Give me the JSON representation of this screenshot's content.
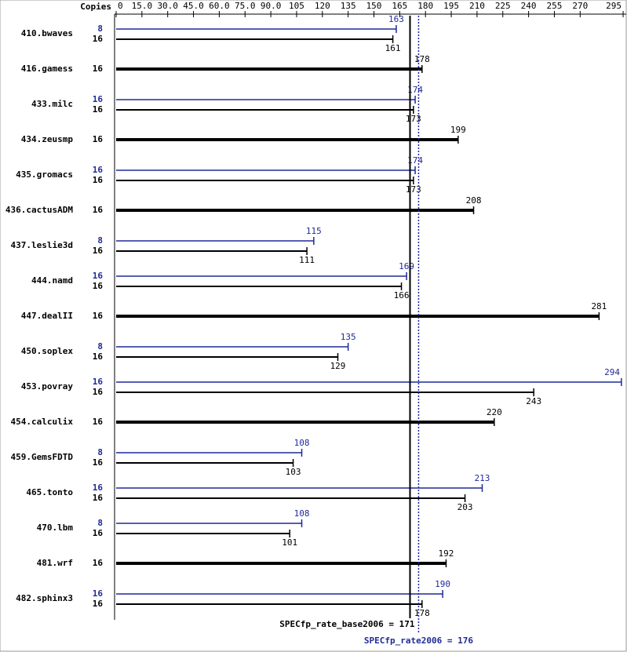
{
  "chart_data": {
    "type": "bar",
    "orientation": "horizontal",
    "axis_label": "Copies",
    "categories": [
      "410.bwaves",
      "416.gamess",
      "433.milc",
      "434.zeusmp",
      "435.gromacs",
      "436.cactusADM",
      "437.leslie3d",
      "444.namd",
      "447.dealII",
      "450.soplex",
      "453.povray",
      "454.calculix",
      "459.GemsFDTD",
      "465.tonto",
      "470.lbm",
      "481.wrf",
      "482.sphinx3"
    ],
    "series": [
      {
        "color": "#000000",
        "copies": [
          16,
          16,
          16,
          16,
          16,
          16,
          16,
          16,
          16,
          16,
          16,
          16,
          16,
          16,
          16,
          16,
          16
        ],
        "values": [
          161,
          178,
          173,
          199,
          173,
          208,
          111,
          166,
          281,
          129,
          243,
          220,
          103,
          203,
          101,
          192,
          178
        ]
      },
      {
        "color": "#1f2a99",
        "copies": [
          8,
          null,
          16,
          null,
          16,
          null,
          8,
          16,
          null,
          8,
          16,
          null,
          8,
          16,
          8,
          null,
          16
        ],
        "values": [
          163,
          null,
          174,
          null,
          174,
          null,
          115,
          169,
          null,
          135,
          294,
          null,
          108,
          213,
          108,
          null,
          190
        ]
      }
    ],
    "reference_lines": [
      {
        "label": "SPECfp_rate_base2006 = 171",
        "value": 171,
        "color": "#000000",
        "style": "solid"
      },
      {
        "label": "SPECfp_rate2006 = 176",
        "value": 176,
        "color": "#1f2a99",
        "style": "dotted"
      }
    ],
    "xlim": [
      0,
      297
    ],
    "xticks": [
      0,
      {
        "value": 15,
        "label": "15.0"
      },
      {
        "value": 30,
        "label": "30.0"
      },
      {
        "value": 45,
        "label": "45.0"
      },
      {
        "value": 60,
        "label": "60.0"
      },
      {
        "value": 75,
        "label": "75.0"
      },
      {
        "value": 90,
        "label": "90.0"
      },
      105,
      120,
      135,
      150,
      165,
      180,
      195,
      210,
      225,
      240,
      255,
      270,
      295
    ]
  }
}
